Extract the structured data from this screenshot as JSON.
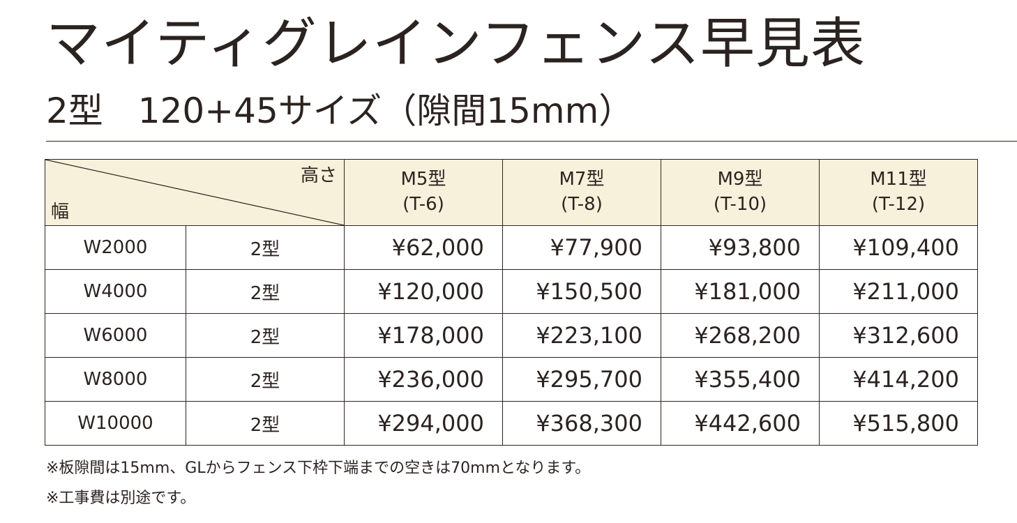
{
  "title": "マイティグレインフェンス早見表",
  "subtitle": "2型　120+45サイズ（隙間15mm）",
  "table": {
    "corner": {
      "height_label": "高さ",
      "width_label": "幅"
    },
    "columns": [
      {
        "model": "M5型",
        "code": "(T-6)"
      },
      {
        "model": "M7型",
        "code": "(T-8)"
      },
      {
        "model": "M9型",
        "code": "(T-10)"
      },
      {
        "model": "M11型",
        "code": "(T-12)"
      }
    ],
    "rows": [
      {
        "width": "W2000",
        "type": "2型",
        "prices": [
          "¥62,000",
          "¥77,900",
          "¥93,800",
          "¥109,400"
        ]
      },
      {
        "width": "W4000",
        "type": "2型",
        "prices": [
          "¥120,000",
          "¥150,500",
          "¥181,000",
          "¥211,000"
        ]
      },
      {
        "width": "W6000",
        "type": "2型",
        "prices": [
          "¥178,000",
          "¥223,100",
          "¥268,200",
          "¥312,600"
        ]
      },
      {
        "width": "W8000",
        "type": "2型",
        "prices": [
          "¥236,000",
          "¥295,700",
          "¥355,400",
          "¥414,200"
        ]
      },
      {
        "width": "W10000",
        "type": "2型",
        "prices": [
          "¥294,000",
          "¥368,300",
          "¥442,600",
          "¥515,800"
        ]
      }
    ]
  },
  "notes": [
    "※板隙間は15mm、GLからフェンス下枠下端までの空きは70mmとなります。",
    "※工事費は別途です。"
  ],
  "colors": {
    "text": "#2b2320",
    "header_background": "#f7f1dc",
    "border": "#2b2320",
    "background": "#ffffff"
  }
}
